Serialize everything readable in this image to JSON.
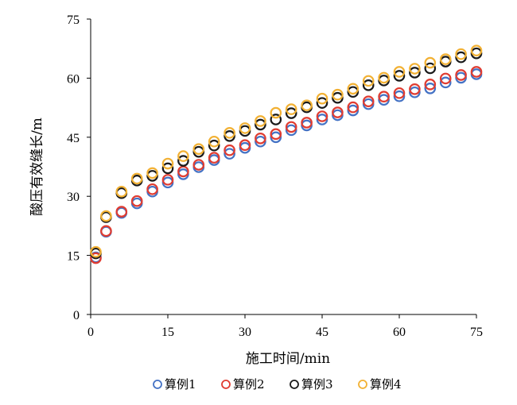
{
  "chart_data": {
    "type": "scatter",
    "xlabel": "施工时间/min",
    "ylabel": "酸压有效缝长/m",
    "xlim": [
      0,
      75
    ],
    "ylim": [
      0,
      75
    ],
    "x_ticks": [
      "0",
      "15",
      "30",
      "45",
      "60",
      "75"
    ],
    "y_ticks": [
      "0",
      "15",
      "30",
      "45",
      "60",
      "75"
    ],
    "grid": false,
    "legend_position": "bottom",
    "x": [
      1,
      3,
      6,
      9,
      12,
      15,
      18,
      21,
      24,
      27,
      30,
      33,
      36,
      39,
      42,
      45,
      48,
      51,
      54,
      57,
      60,
      63,
      66,
      69,
      72,
      75
    ],
    "series": [
      {
        "name": "算例1",
        "color": "#4472C4",
        "values": [
          14.5,
          21.0,
          25.8,
          28.2,
          31.2,
          33.5,
          35.6,
          37.4,
          39.2,
          40.8,
          42.3,
          43.9,
          45.0,
          46.8,
          48.0,
          49.5,
          50.6,
          51.8,
          53.4,
          54.5,
          55.4,
          56.4,
          57.4,
          58.9,
          60.1,
          61.0
        ]
      },
      {
        "name": "算例2",
        "color": "#E03C31",
        "values": [
          14.3,
          21.2,
          26.1,
          28.8,
          31.8,
          34.2,
          36.3,
          38.0,
          39.8,
          41.7,
          43.0,
          44.7,
          45.8,
          47.6,
          48.7,
          50.3,
          51.3,
          52.6,
          54.1,
          55.3,
          56.2,
          57.2,
          58.4,
          59.9,
          60.8,
          61.6
        ]
      },
      {
        "name": "算例3",
        "color": "#1A1A1A",
        "values": [
          15.5,
          24.7,
          30.8,
          34.0,
          35.2,
          37.1,
          39.0,
          41.3,
          42.9,
          45.3,
          46.6,
          48.2,
          49.5,
          51.1,
          52.6,
          53.7,
          55.0,
          56.5,
          58.2,
          59.4,
          60.6,
          61.4,
          62.5,
          64.2,
          65.3,
          66.3
        ]
      },
      {
        "name": "算例4",
        "color": "#F2B134",
        "values": [
          15.9,
          25.0,
          31.2,
          34.5,
          35.9,
          38.3,
          40.2,
          42.0,
          43.9,
          46.1,
          47.3,
          49.1,
          51.2,
          52.1,
          53.1,
          54.8,
          55.8,
          57.3,
          59.3,
          60.1,
          61.6,
          62.4,
          63.9,
          64.8,
          66.1,
          67.0
        ]
      }
    ]
  }
}
